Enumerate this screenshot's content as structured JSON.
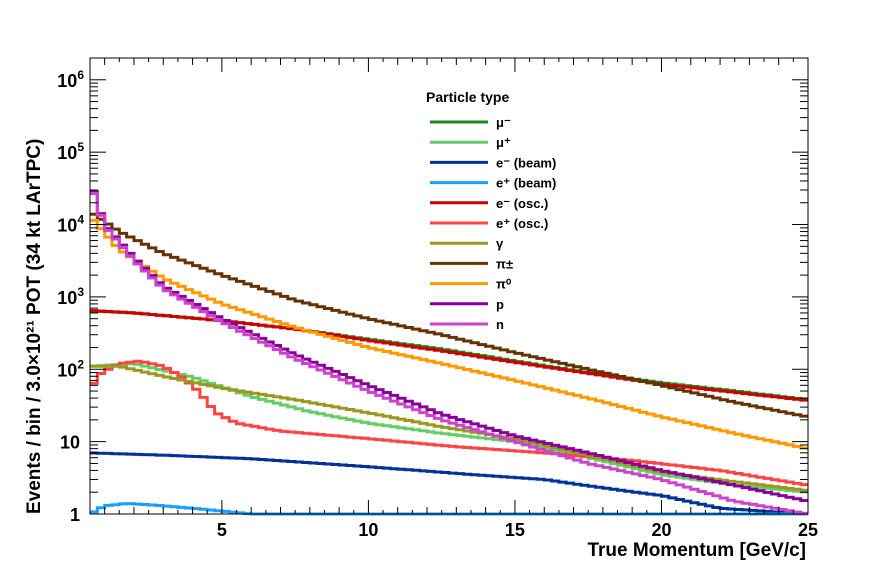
{
  "chart_data": {
    "type": "line",
    "style": "step",
    "xlabel": "True Momentum [GeV/c]",
    "ylabel": "Events / bin / 3.0×10²¹ POT (34 kt LArTPC)",
    "xlim": [
      0.5,
      25
    ],
    "ylim": [
      1,
      2000000
    ],
    "yscale": "log",
    "x_ticks": [
      {
        "value": 5,
        "label": "5"
      },
      {
        "value": 10,
        "label": "10"
      },
      {
        "value": 15,
        "label": "15"
      },
      {
        "value": 20,
        "label": "20"
      },
      {
        "value": 25,
        "label": "25"
      }
    ],
    "y_ticks": [
      {
        "value": 1,
        "label": "1"
      },
      {
        "value": 10,
        "label": "10"
      },
      {
        "value": 100,
        "label": "10",
        "sup": "2"
      },
      {
        "value": 1000,
        "label": "10",
        "sup": "3"
      },
      {
        "value": 10000,
        "label": "10",
        "sup": "4"
      },
      {
        "value": 100000,
        "label": "10",
        "sup": "5"
      },
      {
        "value": 1000000,
        "label": "10",
        "sup": "6"
      }
    ],
    "grid": false,
    "legend": {
      "title": "Particle type",
      "placement": "top-center"
    },
    "series": [
      {
        "name": "μ⁻",
        "color": "#1a8a1a",
        "points": [
          [
            0.5,
            640
          ],
          [
            2,
            600
          ],
          [
            5,
            470
          ],
          [
            7.5,
            360
          ],
          [
            10,
            260
          ],
          [
            12.5,
            190
          ],
          [
            15,
            130
          ],
          [
            17.5,
            90
          ],
          [
            20,
            65
          ],
          [
            22.5,
            50
          ],
          [
            25,
            38
          ]
        ]
      },
      {
        "name": "μ⁺",
        "color": "#66cc66",
        "points": [
          [
            0.5,
            110
          ],
          [
            2,
            120
          ],
          [
            4,
            78
          ],
          [
            6,
            42
          ],
          [
            8,
            26
          ],
          [
            10,
            18
          ],
          [
            12.5,
            13
          ],
          [
            15,
            10
          ],
          [
            17.5,
            6
          ],
          [
            20,
            3.5
          ],
          [
            22.5,
            2.5
          ],
          [
            25,
            2
          ]
        ]
      },
      {
        "name": "e⁻ (beam)",
        "color": "#003399",
        "points": [
          [
            0.5,
            7
          ],
          [
            3,
            6.5
          ],
          [
            6,
            5.8
          ],
          [
            10,
            4.5
          ],
          [
            14,
            3.4
          ],
          [
            16,
            3
          ],
          [
            18,
            2.3
          ],
          [
            20,
            1.8
          ],
          [
            22,
            1.2
          ],
          [
            25,
            1
          ]
        ]
      },
      {
        "name": "e⁺ (beam)",
        "color": "#1a9fff",
        "points": [
          [
            0.5,
            1
          ],
          [
            1,
            1.3
          ],
          [
            1.8,
            1.4
          ],
          [
            3,
            1.3
          ],
          [
            4.5,
            1.15
          ],
          [
            6,
            1
          ],
          [
            25,
            1
          ]
        ]
      },
      {
        "name": "e⁻ (osc.)",
        "color": "#cc0000",
        "points": [
          [
            0.5,
            650
          ],
          [
            2,
            600
          ],
          [
            5,
            470
          ],
          [
            7.5,
            360
          ],
          [
            10,
            250
          ],
          [
            12.5,
            180
          ],
          [
            15,
            125
          ],
          [
            17.5,
            88
          ],
          [
            20,
            62
          ],
          [
            22.5,
            48
          ],
          [
            25,
            37
          ]
        ]
      },
      {
        "name": "e⁺ (osc.)",
        "color": "#ff4444",
        "points": [
          [
            0.5,
            55
          ],
          [
            0.9,
            90
          ],
          [
            1.5,
            120
          ],
          [
            2.2,
            130
          ],
          [
            3,
            110
          ],
          [
            3.6,
            80
          ],
          [
            4.2,
            50
          ],
          [
            4.8,
            25
          ],
          [
            5.5,
            18
          ],
          [
            7,
            14
          ],
          [
            10,
            11
          ],
          [
            13,
            8.5
          ],
          [
            16,
            7
          ],
          [
            19,
            5.5
          ],
          [
            22,
            4
          ],
          [
            25,
            2.5
          ]
        ]
      },
      {
        "name": "γ",
        "color": "#999922",
        "points": [
          [
            0.5,
            110
          ],
          [
            1.5,
            110
          ],
          [
            3,
            80
          ],
          [
            5,
            55
          ],
          [
            7.5,
            38
          ],
          [
            10,
            25
          ],
          [
            12.5,
            16
          ],
          [
            15,
            11
          ],
          [
            17.5,
            6.5
          ],
          [
            20,
            3.8
          ],
          [
            22.5,
            2.8
          ],
          [
            25,
            2.1
          ]
        ]
      },
      {
        "name": "π±",
        "color": "#663300",
        "points": [
          [
            0.5,
            15000
          ],
          [
            1.5,
            8000
          ],
          [
            3,
            4000
          ],
          [
            5,
            2000
          ],
          [
            7.5,
            900
          ],
          [
            10,
            500
          ],
          [
            12.5,
            300
          ],
          [
            15,
            170
          ],
          [
            17.5,
            100
          ],
          [
            20,
            60
          ],
          [
            22.5,
            35
          ],
          [
            25,
            22
          ]
        ]
      },
      {
        "name": "π⁰",
        "color": "#ff9900",
        "points": [
          [
            0.5,
            13000
          ],
          [
            1.5,
            4500
          ],
          [
            3,
            1800
          ],
          [
            5,
            800
          ],
          [
            7.5,
            380
          ],
          [
            10,
            200
          ],
          [
            12.5,
            120
          ],
          [
            15,
            70
          ],
          [
            17.5,
            40
          ],
          [
            20,
            22
          ],
          [
            22.5,
            13
          ],
          [
            25,
            8
          ]
        ]
      },
      {
        "name": "p",
        "color": "#880099",
        "points": [
          [
            0.5,
            40000
          ],
          [
            1,
            10000
          ],
          [
            2,
            3500
          ],
          [
            3,
            1400
          ],
          [
            5,
            500
          ],
          [
            7.5,
            160
          ],
          [
            10,
            60
          ],
          [
            12.5,
            24
          ],
          [
            15,
            12
          ],
          [
            17.5,
            7
          ],
          [
            20,
            4
          ],
          [
            22.5,
            2.5
          ],
          [
            25,
            1.5
          ]
        ]
      },
      {
        "name": "n",
        "color": "#cc44cc",
        "points": [
          [
            0.5,
            38000
          ],
          [
            1,
            9500
          ],
          [
            2,
            3200
          ],
          [
            3,
            1300
          ],
          [
            5,
            450
          ],
          [
            7.5,
            140
          ],
          [
            10,
            50
          ],
          [
            12.5,
            20
          ],
          [
            15,
            10
          ],
          [
            17.5,
            5
          ],
          [
            20,
            3
          ],
          [
            22.5,
            1.5
          ],
          [
            25,
            1
          ]
        ]
      }
    ]
  }
}
